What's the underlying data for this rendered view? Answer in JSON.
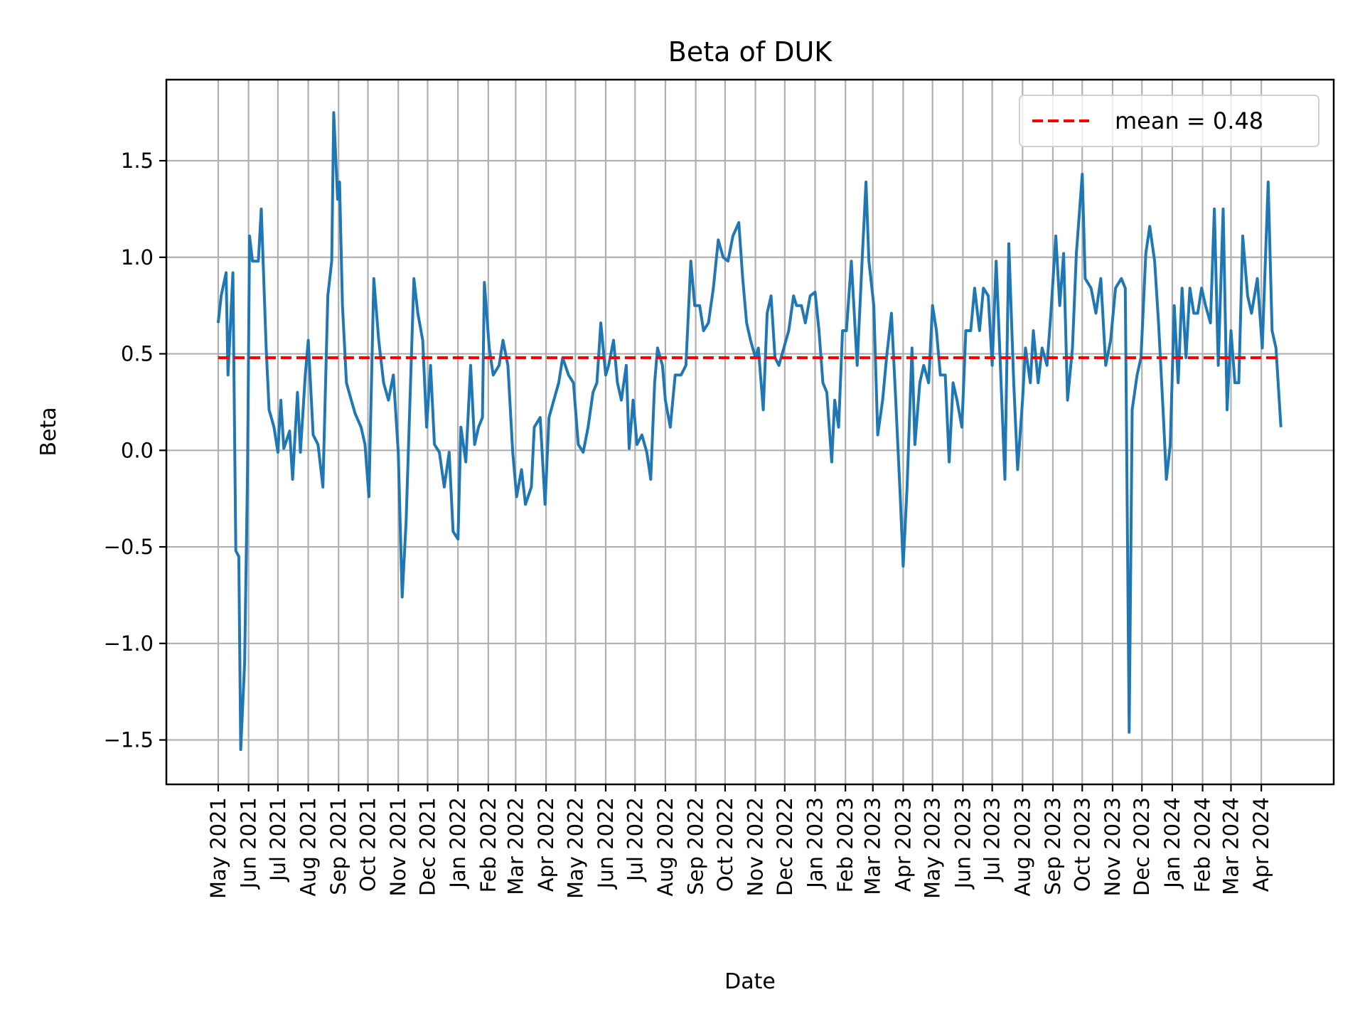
{
  "chart_data": {
    "type": "line",
    "title": "Beta of DUK",
    "xlabel": "Date",
    "ylabel": "Beta",
    "xlim": [
      "2021-03-09",
      "2024-06-14"
    ],
    "ylim": [
      -1.73,
      1.92
    ],
    "grid": true,
    "legend_placement": "upper right",
    "yticks": [
      -1.5,
      -1.0,
      -0.5,
      0.0,
      0.5,
      1.0,
      1.5
    ],
    "ytick_labels": [
      "−1.5",
      "−1.0",
      "−0.5",
      "0.0",
      "0.5",
      "1.0",
      "1.5"
    ],
    "xticks": [
      "2021-05-01",
      "2021-06-01",
      "2021-07-01",
      "2021-08-01",
      "2021-09-01",
      "2021-10-01",
      "2021-11-01",
      "2021-12-01",
      "2022-01-01",
      "2022-02-01",
      "2022-03-01",
      "2022-04-01",
      "2022-05-01",
      "2022-06-01",
      "2022-07-01",
      "2022-08-01",
      "2022-09-01",
      "2022-10-01",
      "2022-11-01",
      "2022-12-01",
      "2023-01-01",
      "2023-02-01",
      "2023-03-01",
      "2023-04-01",
      "2023-05-01",
      "2023-06-01",
      "2023-07-01",
      "2023-08-01",
      "2023-09-01",
      "2023-10-01",
      "2023-11-01",
      "2023-12-01",
      "2024-01-01",
      "2024-02-01",
      "2024-03-01",
      "2024-04-01"
    ],
    "xtick_labels": [
      "May 2021",
      "Jun 2021",
      "Jul 2021",
      "Aug 2021",
      "Sep 2021",
      "Oct 2021",
      "Nov 2021",
      "Dec 2021",
      "Jan 2022",
      "Feb 2022",
      "Mar 2022",
      "Apr 2022",
      "May 2022",
      "Jun 2022",
      "Jul 2022",
      "Aug 2022",
      "Sep 2022",
      "Oct 2022",
      "Nov 2022",
      "Dec 2022",
      "Jan 2023",
      "Feb 2023",
      "Mar 2023",
      "Apr 2023",
      "May 2023",
      "Jun 2023",
      "Jul 2023",
      "Aug 2023",
      "Sep 2023",
      "Oct 2023",
      "Nov 2023",
      "Dec 2023",
      "Jan 2024",
      "Feb 2024",
      "Mar 2024",
      "Apr 2024"
    ],
    "colors": {
      "series": "#1f77b4",
      "mean": "#ff0000",
      "grid": "#b0b0b0"
    },
    "mean": {
      "value": 0.48,
      "label": "mean = 0.48",
      "style": "dashed"
    },
    "series": [
      {
        "points": [
          [
            "2021-05-01",
            0.66
          ],
          [
            "2021-05-04",
            0.8
          ],
          [
            "2021-05-09",
            0.92
          ],
          [
            "2021-05-11",
            0.39
          ],
          [
            "2021-05-16",
            0.92
          ],
          [
            "2021-05-19",
            -0.52
          ],
          [
            "2021-05-22",
            -0.55
          ],
          [
            "2021-05-24",
            -1.55
          ],
          [
            "2021-05-28",
            -1.1
          ],
          [
            "2021-05-31",
            -0.1
          ],
          [
            "2021-06-02",
            1.11
          ],
          [
            "2021-06-05",
            0.98
          ],
          [
            "2021-06-11",
            0.98
          ],
          [
            "2021-06-14",
            1.25
          ],
          [
            "2021-06-19",
            0.53
          ],
          [
            "2021-06-22",
            0.21
          ],
          [
            "2021-06-27",
            0.12
          ],
          [
            "2021-07-01",
            -0.01
          ],
          [
            "2021-07-04",
            0.26
          ],
          [
            "2021-07-07",
            0.01
          ],
          [
            "2021-07-13",
            0.1
          ],
          [
            "2021-07-16",
            -0.15
          ],
          [
            "2021-07-21",
            0.3
          ],
          [
            "2021-07-24",
            -0.01
          ],
          [
            "2021-07-29",
            0.39
          ],
          [
            "2021-08-01",
            0.57
          ],
          [
            "2021-08-06",
            0.08
          ],
          [
            "2021-08-11",
            0.03
          ],
          [
            "2021-08-16",
            -0.19
          ],
          [
            "2021-08-21",
            0.8
          ],
          [
            "2021-08-25",
            0.98
          ],
          [
            "2021-08-27",
            1.75
          ],
          [
            "2021-08-31",
            1.3
          ],
          [
            "2021-09-02",
            1.39
          ],
          [
            "2021-09-05",
            0.75
          ],
          [
            "2021-09-09",
            0.35
          ],
          [
            "2021-09-14",
            0.26
          ],
          [
            "2021-09-18",
            0.19
          ],
          [
            "2021-09-24",
            0.12
          ],
          [
            "2021-09-28",
            0.03
          ],
          [
            "2021-10-02",
            -0.24
          ],
          [
            "2021-10-07",
            0.89
          ],
          [
            "2021-10-12",
            0.57
          ],
          [
            "2021-10-17",
            0.35
          ],
          [
            "2021-10-22",
            0.26
          ],
          [
            "2021-10-27",
            0.39
          ],
          [
            "2021-11-01",
            -0.01
          ],
          [
            "2021-11-05",
            -0.76
          ],
          [
            "2021-11-09",
            -0.37
          ],
          [
            "2021-11-13",
            0.26
          ],
          [
            "2021-11-17",
            0.89
          ],
          [
            "2021-11-21",
            0.71
          ],
          [
            "2021-11-26",
            0.57
          ],
          [
            "2021-11-30",
            0.12
          ],
          [
            "2021-12-04",
            0.44
          ],
          [
            "2021-12-08",
            0.03
          ],
          [
            "2021-12-13",
            -0.01
          ],
          [
            "2021-12-18",
            -0.19
          ],
          [
            "2021-12-23",
            -0.01
          ],
          [
            "2021-12-27",
            -0.42
          ],
          [
            "2022-01-01",
            -0.46
          ],
          [
            "2022-01-04",
            0.12
          ],
          [
            "2022-01-09",
            -0.06
          ],
          [
            "2022-01-14",
            0.44
          ],
          [
            "2022-01-18",
            0.03
          ],
          [
            "2022-01-22",
            0.12
          ],
          [
            "2022-01-26",
            0.17
          ],
          [
            "2022-01-28",
            0.87
          ],
          [
            "2022-02-02",
            0.53
          ],
          [
            "2022-02-06",
            0.39
          ],
          [
            "2022-02-12",
            0.44
          ],
          [
            "2022-02-16",
            0.57
          ],
          [
            "2022-02-21",
            0.44
          ],
          [
            "2022-02-26",
            -0.01
          ],
          [
            "2022-03-02",
            -0.24
          ],
          [
            "2022-03-07",
            -0.1
          ],
          [
            "2022-03-11",
            -0.28
          ],
          [
            "2022-03-17",
            -0.19
          ],
          [
            "2022-03-20",
            0.12
          ],
          [
            "2022-03-26",
            0.17
          ],
          [
            "2022-03-31",
            -0.28
          ],
          [
            "2022-04-04",
            0.17
          ],
          [
            "2022-04-09",
            0.26
          ],
          [
            "2022-04-14",
            0.35
          ],
          [
            "2022-04-18",
            0.48
          ],
          [
            "2022-04-24",
            0.39
          ],
          [
            "2022-04-29",
            0.35
          ],
          [
            "2022-05-04",
            0.03
          ],
          [
            "2022-05-09",
            -0.01
          ],
          [
            "2022-05-14",
            0.12
          ],
          [
            "2022-05-19",
            0.3
          ],
          [
            "2022-05-23",
            0.35
          ],
          [
            "2022-05-27",
            0.66
          ],
          [
            "2022-06-01",
            0.39
          ],
          [
            "2022-06-04",
            0.44
          ],
          [
            "2022-06-09",
            0.57
          ],
          [
            "2022-06-13",
            0.35
          ],
          [
            "2022-06-17",
            0.26
          ],
          [
            "2022-06-22",
            0.44
          ],
          [
            "2022-06-25",
            0.01
          ],
          [
            "2022-06-29",
            0.26
          ],
          [
            "2022-07-03",
            0.03
          ],
          [
            "2022-07-08",
            0.08
          ],
          [
            "2022-07-13",
            -0.01
          ],
          [
            "2022-07-17",
            -0.15
          ],
          [
            "2022-07-21",
            0.35
          ],
          [
            "2022-07-24",
            0.53
          ],
          [
            "2022-07-29",
            0.44
          ],
          [
            "2022-08-01",
            0.26
          ],
          [
            "2022-08-06",
            0.12
          ],
          [
            "2022-08-11",
            0.39
          ],
          [
            "2022-08-17",
            0.39
          ],
          [
            "2022-08-22",
            0.44
          ],
          [
            "2022-08-27",
            0.98
          ],
          [
            "2022-08-31",
            0.75
          ],
          [
            "2022-09-05",
            0.75
          ],
          [
            "2022-09-09",
            0.62
          ],
          [
            "2022-09-14",
            0.66
          ],
          [
            "2022-09-19",
            0.84
          ],
          [
            "2022-09-24",
            1.09
          ],
          [
            "2022-09-29",
            1.0
          ],
          [
            "2022-10-04",
            0.98
          ],
          [
            "2022-10-09",
            1.11
          ],
          [
            "2022-10-15",
            1.18
          ],
          [
            "2022-10-19",
            0.89
          ],
          [
            "2022-10-23",
            0.66
          ],
          [
            "2022-10-27",
            0.57
          ],
          [
            "2022-11-01",
            0.48
          ],
          [
            "2022-11-04",
            0.53
          ],
          [
            "2022-11-09",
            0.21
          ],
          [
            "2022-11-13",
            0.71
          ],
          [
            "2022-11-17",
            0.8
          ],
          [
            "2022-11-21",
            0.48
          ],
          [
            "2022-11-25",
            0.44
          ],
          [
            "2022-11-30",
            0.53
          ],
          [
            "2022-12-05",
            0.62
          ],
          [
            "2022-12-10",
            0.8
          ],
          [
            "2022-12-13",
            0.75
          ],
          [
            "2022-12-18",
            0.75
          ],
          [
            "2022-12-22",
            0.66
          ],
          [
            "2022-12-27",
            0.8
          ],
          [
            "2023-01-01",
            0.82
          ],
          [
            "2023-01-05",
            0.62
          ],
          [
            "2023-01-09",
            0.35
          ],
          [
            "2023-01-13",
            0.3
          ],
          [
            "2023-01-18",
            -0.06
          ],
          [
            "2023-01-21",
            0.26
          ],
          [
            "2023-01-25",
            0.12
          ],
          [
            "2023-01-29",
            0.62
          ],
          [
            "2023-02-02",
            0.62
          ],
          [
            "2023-02-07",
            0.98
          ],
          [
            "2023-02-13",
            0.44
          ],
          [
            "2023-02-18",
            0.98
          ],
          [
            "2023-02-22",
            1.39
          ],
          [
            "2023-02-25",
            0.98
          ],
          [
            "2023-03-02",
            0.75
          ],
          [
            "2023-03-06",
            0.08
          ],
          [
            "2023-03-11",
            0.26
          ],
          [
            "2023-03-15",
            0.48
          ],
          [
            "2023-03-20",
            0.71
          ],
          [
            "2023-03-24",
            0.3
          ],
          [
            "2023-03-29",
            -0.24
          ],
          [
            "2023-04-01",
            -0.6
          ],
          [
            "2023-04-05",
            -0.19
          ],
          [
            "2023-04-10",
            0.53
          ],
          [
            "2023-04-13",
            0.03
          ],
          [
            "2023-04-18",
            0.35
          ],
          [
            "2023-04-22",
            0.44
          ],
          [
            "2023-04-27",
            0.35
          ],
          [
            "2023-05-01",
            0.75
          ],
          [
            "2023-05-05",
            0.62
          ],
          [
            "2023-05-09",
            0.39
          ],
          [
            "2023-05-14",
            0.39
          ],
          [
            "2023-05-18",
            -0.06
          ],
          [
            "2023-05-22",
            0.35
          ],
          [
            "2023-05-26",
            0.26
          ],
          [
            "2023-05-31",
            0.12
          ],
          [
            "2023-06-04",
            0.62
          ],
          [
            "2023-06-09",
            0.62
          ],
          [
            "2023-06-13",
            0.84
          ],
          [
            "2023-06-18",
            0.62
          ],
          [
            "2023-06-22",
            0.84
          ],
          [
            "2023-06-27",
            0.8
          ],
          [
            "2023-07-01",
            0.44
          ],
          [
            "2023-07-05",
            0.98
          ],
          [
            "2023-07-09",
            0.48
          ],
          [
            "2023-07-14",
            -0.15
          ],
          [
            "2023-07-18",
            1.07
          ],
          [
            "2023-07-23",
            0.35
          ],
          [
            "2023-07-27",
            -0.1
          ],
          [
            "2023-08-01",
            0.26
          ],
          [
            "2023-08-04",
            0.53
          ],
          [
            "2023-08-09",
            0.35
          ],
          [
            "2023-08-12",
            0.62
          ],
          [
            "2023-08-17",
            0.35
          ],
          [
            "2023-08-21",
            0.53
          ],
          [
            "2023-08-26",
            0.44
          ],
          [
            "2023-08-30",
            0.71
          ],
          [
            "2023-09-04",
            1.11
          ],
          [
            "2023-09-08",
            0.75
          ],
          [
            "2023-09-12",
            1.02
          ],
          [
            "2023-09-16",
            0.26
          ],
          [
            "2023-09-21",
            0.53
          ],
          [
            "2023-09-25",
            1.02
          ],
          [
            "2023-10-01",
            1.43
          ],
          [
            "2023-10-04",
            0.89
          ],
          [
            "2023-10-10",
            0.84
          ],
          [
            "2023-10-15",
            0.71
          ],
          [
            "2023-10-20",
            0.89
          ],
          [
            "2023-10-25",
            0.44
          ],
          [
            "2023-10-30",
            0.57
          ],
          [
            "2023-11-04",
            0.84
          ],
          [
            "2023-11-10",
            0.89
          ],
          [
            "2023-11-14",
            0.84
          ],
          [
            "2023-11-18",
            -1.46
          ],
          [
            "2023-11-21",
            0.21
          ],
          [
            "2023-11-26",
            0.39
          ],
          [
            "2023-11-30",
            0.48
          ],
          [
            "2023-12-05",
            1.02
          ],
          [
            "2023-12-09",
            1.16
          ],
          [
            "2023-12-14",
            0.98
          ],
          [
            "2023-12-18",
            0.66
          ],
          [
            "2023-12-23",
            0.17
          ],
          [
            "2023-12-26",
            -0.15
          ],
          [
            "2023-12-30",
            0.03
          ],
          [
            "2024-01-03",
            0.75
          ],
          [
            "2024-01-07",
            0.35
          ],
          [
            "2024-01-11",
            0.84
          ],
          [
            "2024-01-15",
            0.48
          ],
          [
            "2024-01-19",
            0.84
          ],
          [
            "2024-01-23",
            0.71
          ],
          [
            "2024-01-27",
            0.71
          ],
          [
            "2024-01-31",
            0.84
          ],
          [
            "2024-02-04",
            0.75
          ],
          [
            "2024-02-09",
            0.66
          ],
          [
            "2024-02-13",
            1.25
          ],
          [
            "2024-02-17",
            0.44
          ],
          [
            "2024-02-22",
            1.25
          ],
          [
            "2024-02-26",
            0.21
          ],
          [
            "2024-03-01",
            0.62
          ],
          [
            "2024-03-05",
            0.35
          ],
          [
            "2024-03-09",
            0.35
          ],
          [
            "2024-03-13",
            1.11
          ],
          [
            "2024-03-18",
            0.8
          ],
          [
            "2024-03-22",
            0.71
          ],
          [
            "2024-03-28",
            0.89
          ],
          [
            "2024-04-02",
            0.53
          ],
          [
            "2024-04-08",
            1.39
          ],
          [
            "2024-04-12",
            0.62
          ],
          [
            "2024-04-16",
            0.53
          ],
          [
            "2024-04-21",
            0.12
          ]
        ]
      }
    ]
  }
}
